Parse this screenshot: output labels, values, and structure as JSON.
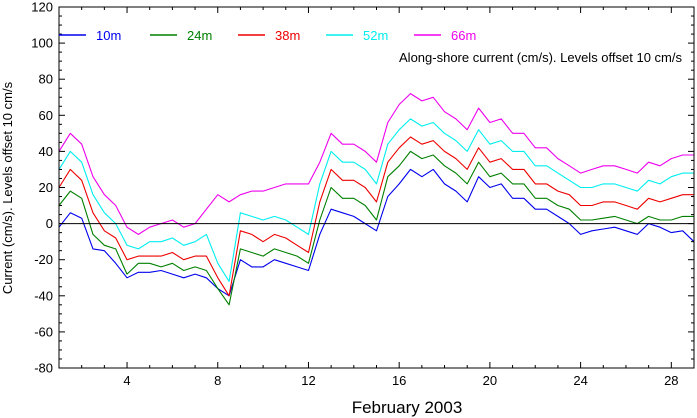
{
  "chart_data": {
    "type": "line",
    "title": "",
    "annotation": "Along-shore current (cm/s). Levels offset 10 cm/s",
    "xlabel": "February 2003",
    "ylabel": "Current (cm/s). Levels offset 10 cm/s",
    "xlim": [
      1,
      29
    ],
    "ylim": [
      -80,
      120
    ],
    "xticks": [
      4,
      8,
      12,
      16,
      20,
      24,
      28
    ],
    "yticks": [
      -80,
      -60,
      -40,
      -20,
      0,
      20,
      40,
      60,
      80,
      100,
      120
    ],
    "zero_line": true,
    "legend_position": "top-left",
    "x": [
      1,
      1.5,
      2,
      2.5,
      3,
      3.5,
      4,
      4.5,
      5,
      5.5,
      6,
      6.5,
      7,
      7.5,
      8,
      8.5,
      9,
      9.5,
      10,
      10.5,
      11,
      11.5,
      12,
      12.5,
      13,
      13.5,
      14,
      14.5,
      15,
      15.5,
      16,
      16.5,
      17,
      17.5,
      18,
      18.5,
      19,
      19.5,
      20,
      20.5,
      21,
      21.5,
      22,
      22.5,
      23,
      23.5,
      24,
      24.5,
      25,
      25.5,
      26,
      26.5,
      27,
      27.5,
      28,
      28.5,
      29
    ],
    "series": [
      {
        "name": "10m",
        "color": "#0000ee",
        "values": [
          -2,
          6,
          3,
          -14,
          -15,
          -22,
          -30,
          -27,
          -27,
          -26,
          -28,
          -30,
          -28,
          -30,
          -36,
          -40,
          -20,
          -24,
          -24,
          -20,
          -22,
          -24,
          -26,
          -6,
          8,
          6,
          4,
          0,
          -4,
          15,
          22,
          30,
          26,
          30,
          22,
          18,
          12,
          26,
          20,
          22,
          14,
          14,
          8,
          8,
          4,
          0,
          -6,
          -4,
          -3,
          -2,
          -4,
          -6,
          0,
          -2,
          -5,
          -4,
          -10
        ]
      },
      {
        "name": "24m",
        "color": "#008000",
        "values": [
          10,
          18,
          14,
          -6,
          -12,
          -14,
          -28,
          -22,
          -22,
          -24,
          -22,
          -26,
          -24,
          -26,
          -36,
          -45,
          -14,
          -16,
          -18,
          -14,
          -16,
          -18,
          -22,
          2,
          20,
          14,
          14,
          10,
          2,
          26,
          32,
          40,
          36,
          38,
          32,
          28,
          22,
          34,
          26,
          28,
          22,
          22,
          14,
          14,
          10,
          8,
          2,
          2,
          3,
          4,
          2,
          0,
          4,
          2,
          2,
          4,
          4
        ]
      },
      {
        "name": "38m",
        "color": "#ee0000",
        "values": [
          20,
          30,
          24,
          6,
          -4,
          -8,
          -20,
          -18,
          -18,
          -18,
          -16,
          -20,
          -18,
          -18,
          -30,
          -40,
          -4,
          -6,
          -10,
          -6,
          -8,
          -12,
          -16,
          12,
          30,
          24,
          24,
          20,
          12,
          34,
          42,
          48,
          44,
          46,
          40,
          36,
          30,
          42,
          34,
          36,
          30,
          30,
          22,
          22,
          18,
          16,
          10,
          10,
          12,
          12,
          10,
          8,
          14,
          12,
          14,
          16,
          16
        ]
      },
      {
        "name": "52m",
        "color": "#00eeee",
        "values": [
          30,
          40,
          34,
          16,
          6,
          0,
          -12,
          -14,
          -10,
          -10,
          -8,
          -12,
          -10,
          -6,
          -22,
          -32,
          6,
          4,
          2,
          4,
          2,
          -2,
          -6,
          22,
          40,
          34,
          34,
          30,
          22,
          44,
          52,
          58,
          54,
          56,
          50,
          46,
          40,
          52,
          44,
          46,
          40,
          40,
          32,
          32,
          28,
          24,
          20,
          20,
          22,
          22,
          20,
          18,
          24,
          22,
          26,
          28,
          28
        ]
      },
      {
        "name": "66m",
        "color": "#ee00ee",
        "values": [
          40,
          50,
          44,
          26,
          16,
          10,
          -2,
          -6,
          -2,
          0,
          2,
          -2,
          0,
          8,
          16,
          12,
          16,
          18,
          18,
          20,
          22,
          22,
          22,
          34,
          50,
          44,
          44,
          40,
          34,
          56,
          66,
          72,
          68,
          70,
          62,
          58,
          52,
          64,
          56,
          58,
          50,
          50,
          42,
          42,
          36,
          32,
          28,
          30,
          32,
          32,
          30,
          28,
          34,
          32,
          36,
          38,
          38
        ]
      }
    ]
  }
}
